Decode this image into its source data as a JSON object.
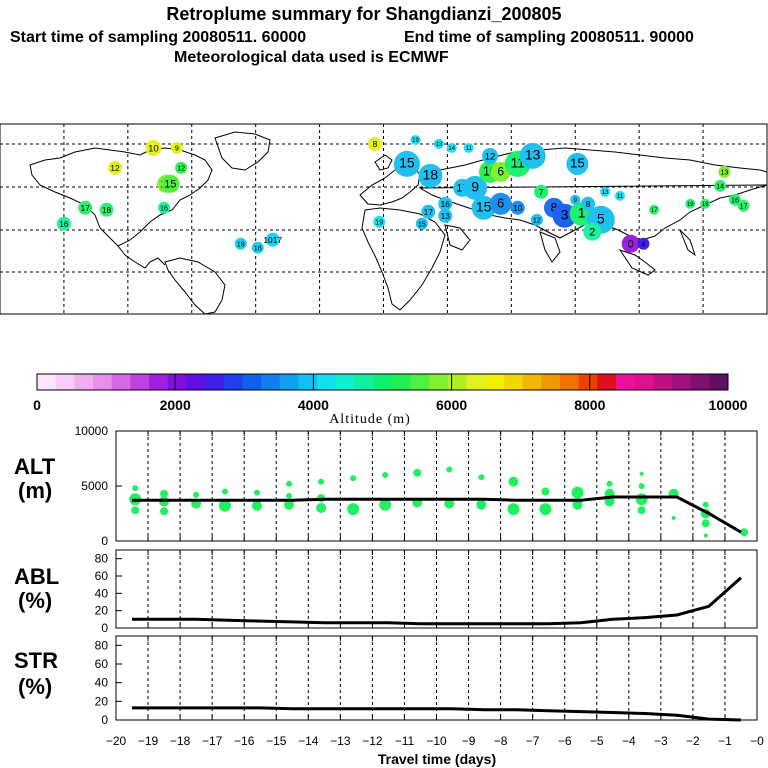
{
  "header": {
    "title": "Retroplume summary for Shangdianzi_200805",
    "start_label": "Start time of sampling 20080511. 60000",
    "end_label": "End time of sampling 20080511. 90000",
    "met_label": "Meteorological data used is ECMWF"
  },
  "colorbar": {
    "label": "Altitude (m)",
    "ticks": [
      "0",
      "2000",
      "4000",
      "6000",
      "8000",
      "10000"
    ],
    "colors": [
      "#fde6fd",
      "#f8cdf8",
      "#f0b0f0",
      "#e890ec",
      "#d868e8",
      "#c040e0",
      "#a020e0",
      "#8010e0",
      "#6010e0",
      "#4020e8",
      "#2040f0",
      "#1060f0",
      "#1080f0",
      "#10a0f0",
      "#10c0f0",
      "#10e0f0",
      "#10f0d0",
      "#10f0a0",
      "#10f070",
      "#20f050",
      "#50f040",
      "#80f030",
      "#b0f020",
      "#e0f020",
      "#f0f000",
      "#f0d800",
      "#f0b800",
      "#f09800",
      "#f07000",
      "#f04000",
      "#e01020",
      "#f010a0",
      "#e01090",
      "#c01080",
      "#a01080",
      "#801070",
      "#601060"
    ]
  },
  "map": {
    "markers": [
      {
        "label": "10",
        "lon": -108,
        "lat": 78,
        "r": 8,
        "color": "#e8f020"
      },
      {
        "label": "9",
        "lon": -97,
        "lat": 78,
        "r": 6,
        "color": "#e0f020"
      },
      {
        "label": "8",
        "lon": -4,
        "lat": 80,
        "r": 7,
        "color": "#e0f020"
      },
      {
        "label": "12",
        "lon": -126,
        "lat": 68,
        "r": 7,
        "color": "#e0f020"
      },
      {
        "label": "12",
        "lon": -95,
        "lat": 68,
        "r": 6,
        "color": "#30f050"
      },
      {
        "label": "14",
        "lon": -102,
        "lat": 60,
        "r": 9,
        "color": "#80f030"
      },
      {
        "label": "15",
        "lon": -100,
        "lat": 60,
        "r": 9,
        "color": "#50f040"
      },
      {
        "label": "16",
        "lon": -103,
        "lat": 48,
        "r": 6,
        "color": "#20f0a0"
      },
      {
        "label": "16",
        "lon": -150,
        "lat": 40,
        "r": 7,
        "color": "#20f0a0"
      },
      {
        "label": "17",
        "lon": -140,
        "lat": 48,
        "r": 7,
        "color": "#30f070"
      },
      {
        "label": "18",
        "lon": -130,
        "lat": 47,
        "r": 7,
        "color": "#30f070"
      },
      {
        "label": "19",
        "lon": -67,
        "lat": 30,
        "r": 6,
        "color": "#20d0f0"
      },
      {
        "label": "18",
        "lon": -59,
        "lat": 28,
        "r": 6,
        "color": "#20d0f0"
      },
      {
        "label": "1017",
        "lon": -52,
        "lat": 32,
        "r": 7,
        "color": "#20d0f0"
      },
      {
        "label": "15",
        "lon": 11,
        "lat": 70,
        "r": 13,
        "color": "#20c0f0"
      },
      {
        "label": "19",
        "lon": 15,
        "lat": 82,
        "r": 5,
        "color": "#20e0f0"
      },
      {
        "label": "13",
        "lon": 26,
        "lat": 80,
        "r": 5,
        "color": "#20e0f0"
      },
      {
        "label": "18",
        "lon": 22,
        "lat": 64,
        "r": 12,
        "color": "#20c0f0"
      },
      {
        "label": "17",
        "lon": 37,
        "lat": 58,
        "r": 9,
        "color": "#20c0f0"
      },
      {
        "label": "9",
        "lon": 43,
        "lat": 58,
        "r": 12,
        "color": "#20c0f0"
      },
      {
        "label": "10",
        "lon": 50,
        "lat": 66,
        "r": 11,
        "color": "#30f050"
      },
      {
        "label": "6",
        "lon": 55,
        "lat": 66,
        "r": 10,
        "color": "#80f030"
      },
      {
        "label": "11",
        "lon": 63,
        "lat": 70,
        "r": 13,
        "color": "#20f070"
      },
      {
        "label": "13",
        "lon": 70,
        "lat": 74,
        "r": 13,
        "color": "#20c0f0"
      },
      {
        "label": "15",
        "lon": 91,
        "lat": 70,
        "r": 11,
        "color": "#20c0f0"
      },
      {
        "label": "15",
        "lon": 47,
        "lat": 48,
        "r": 12,
        "color": "#20c0f0"
      },
      {
        "label": "6",
        "lon": 55,
        "lat": 50,
        "r": 11,
        "color": "#2090f0"
      },
      {
        "label": "16",
        "lon": 29,
        "lat": 50,
        "r": 7,
        "color": "#20c0f0"
      },
      {
        "label": "17",
        "lon": 21,
        "lat": 46,
        "r": 7,
        "color": "#20c0f0"
      },
      {
        "label": "13",
        "lon": 29,
        "lat": 44,
        "r": 7,
        "color": "#20c0f0"
      },
      {
        "label": "15",
        "lon": 18,
        "lat": 40,
        "r": 6,
        "color": "#20c0f0"
      },
      {
        "label": "19",
        "lon": -2,
        "lat": 41,
        "r": 6,
        "color": "#20e0f0"
      },
      {
        "label": "8",
        "lon": 80,
        "lat": 48,
        "r": 10,
        "color": "#2070f0"
      },
      {
        "label": "3",
        "lon": 85,
        "lat": 44,
        "r": 12,
        "color": "#2060f0"
      },
      {
        "label": "1",
        "lon": 93,
        "lat": 45,
        "r": 12,
        "color": "#20f070"
      },
      {
        "label": "5",
        "lon": 102,
        "lat": 42,
        "r": 14,
        "color": "#20c0f0"
      },
      {
        "label": "2",
        "lon": 98,
        "lat": 36,
        "r": 9,
        "color": "#20f0a0"
      },
      {
        "label": "0",
        "lon": 116,
        "lat": 30,
        "r": 9,
        "color": "#a020e0"
      },
      {
        "label": "4",
        "lon": 122,
        "lat": 30,
        "r": 6,
        "color": "#4020e8"
      },
      {
        "label": "8",
        "lon": 96,
        "lat": 50,
        "r": 7,
        "color": "#20c0f0"
      },
      {
        "label": "9",
        "lon": 90,
        "lat": 52,
        "r": 5,
        "color": "#20c0f0"
      },
      {
        "label": "13",
        "lon": 104,
        "lat": 56,
        "r": 5,
        "color": "#20e0f0"
      },
      {
        "label": "11",
        "lon": 111,
        "lat": 54,
        "r": 5,
        "color": "#20e0f0"
      },
      {
        "label": "17",
        "lon": 127,
        "lat": 47,
        "r": 5,
        "color": "#30f070"
      },
      {
        "label": "19",
        "lon": 144,
        "lat": 50,
        "r": 5,
        "color": "#30f070"
      },
      {
        "label": "18",
        "lon": 151,
        "lat": 50,
        "r": 5,
        "color": "#30f070"
      },
      {
        "label": "16",
        "lon": 165,
        "lat": 52,
        "r": 6,
        "color": "#30f070"
      },
      {
        "label": "17",
        "lon": 169,
        "lat": 49,
        "r": 6,
        "color": "#30f070"
      },
      {
        "label": "13",
        "lon": 160,
        "lat": 66,
        "r": 6,
        "color": "#80f030"
      },
      {
        "label": "14",
        "lon": 158,
        "lat": 59,
        "r": 6,
        "color": "#30f070"
      },
      {
        "label": "12",
        "lon": 72,
        "lat": 42,
        "r": 6,
        "color": "#20c0f0"
      },
      {
        "label": "10",
        "lon": 63,
        "lat": 48,
        "r": 7,
        "color": "#2090f0"
      },
      {
        "label": "7",
        "lon": 74,
        "lat": 56,
        "r": 7,
        "color": "#20f070"
      },
      {
        "label": "11",
        "lon": 40,
        "lat": 78,
        "r": 5,
        "color": "#20e0f0"
      },
      {
        "label": "14",
        "lon": 32,
        "lat": 78,
        "r": 5,
        "color": "#20e0f0"
      },
      {
        "label": "12",
        "lon": 50,
        "lat": 74,
        "r": 8,
        "color": "#20c0f0"
      }
    ]
  },
  "panels": {
    "alt": {
      "title": "ALT",
      "unit": "(m)",
      "yticks": [
        "10000",
        "5000",
        "0"
      ]
    },
    "abl": {
      "title": "ABL",
      "unit": "(%)",
      "yticks": [
        "80",
        "60",
        "40",
        "20",
        "0"
      ]
    },
    "str": {
      "title": "STR",
      "unit": "(%)",
      "yticks": [
        "80",
        "60",
        "40",
        "20",
        "0"
      ]
    },
    "xticks": [
      "−20",
      "−19",
      "−18",
      "−17",
      "−16",
      "−15",
      "−14",
      "−13",
      "−12",
      "−11",
      "−10",
      "−9",
      "−8",
      "−7",
      "−6",
      "−5",
      "−4",
      "−3",
      "−2",
      "−1",
      "−0"
    ],
    "xlabel": "Travel time (days)"
  },
  "chart_data": [
    {
      "type": "line",
      "title": "ALT",
      "ylabel": "(m)",
      "xlabel": "Travel time (days)",
      "ylim": [
        0,
        10000
      ],
      "xlim": [
        -20,
        0
      ],
      "grid": true,
      "x": [
        -19.5,
        -18.5,
        -17.5,
        -16.5,
        -15.5,
        -14.5,
        -13.5,
        -12.5,
        -11.5,
        -10.5,
        -9.5,
        -8.5,
        -7.5,
        -6.5,
        -5.5,
        -4.5,
        -3.5,
        -2.5,
        -1.5,
        -0.5
      ],
      "series": [
        {
          "name": "median altitude",
          "values": [
            3700,
            3700,
            3700,
            3700,
            3700,
            3700,
            3800,
            3800,
            3800,
            3800,
            3800,
            3800,
            3700,
            3700,
            3700,
            4000,
            4000,
            4000,
            2500,
            800
          ]
        }
      ],
      "scatter": {
        "name": "altitude clusters",
        "color": "#20f060",
        "points": [
          [
            -19.4,
            4800,
            3
          ],
          [
            -19.4,
            3800,
            6
          ],
          [
            -19.4,
            2800,
            4
          ],
          [
            -18.5,
            4300,
            4
          ],
          [
            -18.5,
            3600,
            5
          ],
          [
            -18.5,
            2700,
            4
          ],
          [
            -17.5,
            4200,
            3
          ],
          [
            -17.5,
            3400,
            5
          ],
          [
            -16.6,
            4500,
            3
          ],
          [
            -16.6,
            3200,
            6
          ],
          [
            -15.6,
            4400,
            3
          ],
          [
            -15.6,
            3200,
            5
          ],
          [
            -14.6,
            5200,
            3
          ],
          [
            -14.6,
            4100,
            3
          ],
          [
            -14.6,
            3300,
            5
          ],
          [
            -13.6,
            5400,
            3
          ],
          [
            -13.6,
            3900,
            4
          ],
          [
            -13.6,
            3000,
            5
          ],
          [
            -12.6,
            5700,
            3
          ],
          [
            -12.6,
            2900,
            6
          ],
          [
            -11.6,
            6000,
            3
          ],
          [
            -11.6,
            3300,
            6
          ],
          [
            -10.6,
            6200,
            4
          ],
          [
            -10.6,
            3500,
            5
          ],
          [
            -9.6,
            6500,
            3
          ],
          [
            -9.6,
            3400,
            5
          ],
          [
            -8.6,
            5800,
            3
          ],
          [
            -8.6,
            3300,
            5
          ],
          [
            -7.6,
            5400,
            5
          ],
          [
            -7.6,
            2900,
            6
          ],
          [
            -6.6,
            4500,
            4
          ],
          [
            -6.6,
            2900,
            6
          ],
          [
            -5.6,
            4400,
            6
          ],
          [
            -5.6,
            3300,
            5
          ],
          [
            -4.6,
            5200,
            3
          ],
          [
            -4.6,
            4300,
            5
          ],
          [
            -4.6,
            3600,
            5
          ],
          [
            -3.6,
            6100,
            2
          ],
          [
            -3.6,
            5000,
            3
          ],
          [
            -3.6,
            3800,
            6
          ],
          [
            -3.6,
            2800,
            4
          ],
          [
            -2.6,
            4300,
            5
          ],
          [
            -2.6,
            2100,
            2
          ],
          [
            -1.6,
            3300,
            3
          ],
          [
            -1.6,
            2500,
            5
          ],
          [
            -1.6,
            1600,
            4
          ],
          [
            -1.6,
            500,
            2
          ],
          [
            -0.4,
            800,
            4
          ]
        ]
      }
    },
    {
      "type": "line",
      "title": "ABL",
      "ylabel": "(%)",
      "xlabel": "Travel time (days)",
      "ylim": [
        0,
        90
      ],
      "xlim": [
        -20,
        0
      ],
      "grid": true,
      "x": [
        -19.5,
        -18.5,
        -17.5,
        -16.5,
        -15.5,
        -14.5,
        -13.5,
        -12.5,
        -11.5,
        -10.5,
        -9.5,
        -8.5,
        -7.5,
        -6.5,
        -5.5,
        -4.5,
        -3.5,
        -2.5,
        -1.5,
        -0.5
      ],
      "series": [
        {
          "name": "ABL fraction",
          "values": [
            10,
            10,
            10,
            9,
            8,
            7,
            6,
            6,
            6,
            5,
            5,
            5,
            5,
            5,
            6,
            10,
            12,
            15,
            25,
            58
          ]
        }
      ]
    },
    {
      "type": "line",
      "title": "STR",
      "ylabel": "(%)",
      "xlabel": "Travel time (days)",
      "ylim": [
        0,
        90
      ],
      "xlim": [
        -20,
        0
      ],
      "grid": true,
      "x": [
        -19.5,
        -18.5,
        -17.5,
        -16.5,
        -15.5,
        -14.5,
        -13.5,
        -12.5,
        -11.5,
        -10.5,
        -9.5,
        -8.5,
        -7.5,
        -6.5,
        -5.5,
        -4.5,
        -3.5,
        -2.5,
        -1.5,
        -0.5
      ],
      "series": [
        {
          "name": "stratospheric fraction",
          "values": [
            13,
            13,
            13,
            13,
            13,
            12,
            12,
            12,
            12,
            12,
            12,
            11,
            11,
            10,
            9,
            8,
            7,
            5,
            1,
            0
          ]
        }
      ]
    }
  ]
}
